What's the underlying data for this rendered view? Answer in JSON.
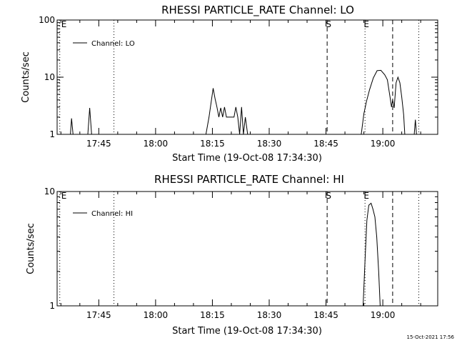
{
  "footer_timestamp": "15-Oct-2021 17:56",
  "chart_data": [
    {
      "type": "line",
      "title": "RHESSI PARTICLE_RATE Channel: LO",
      "xlabel": "Start Time (19-Oct-08 17:34:30)",
      "ylabel": "Counts/sec",
      "yscale": "log",
      "xlim_minutes": [
        -0.5,
        63.5
      ],
      "ylim": [
        1,
        100
      ],
      "x_ticks": [
        {
          "minutes": 10.5,
          "label": "17:45"
        },
        {
          "minutes": 25.5,
          "label": "18:00"
        },
        {
          "minutes": 40.5,
          "label": "18:15"
        },
        {
          "minutes": 55.5,
          "label": "18:30"
        },
        {
          "minutes": 70.5,
          "label": "18:45"
        },
        {
          "minutes": 85.5,
          "label": "19:00"
        }
      ],
      "y_ticks": [
        {
          "value": 1,
          "label": "1"
        },
        {
          "value": 10,
          "label": "10"
        },
        {
          "value": 100,
          "label": "100"
        }
      ],
      "legend": {
        "label": "Channel: LO",
        "position": "top-left"
      },
      "markers": [
        {
          "minutes": 0.2,
          "style": "dotted",
          "label": "E"
        },
        {
          "minutes": 14.5,
          "style": "dotted",
          "label": ""
        },
        {
          "minutes": 70.8,
          "style": "dashed",
          "label": "S"
        },
        {
          "minutes": 80.8,
          "style": "dotted",
          "label": "E"
        },
        {
          "minutes": 88.1,
          "style": "dashed",
          "label": ""
        },
        {
          "minutes": 95.0,
          "style": "dotted",
          "label": ""
        }
      ],
      "series": [
        {
          "segments": [
            [
              [
                3.0,
                1
              ],
              [
                3.3,
                1.9
              ],
              [
                3.7,
                1
              ]
            ],
            [
              [
                7.6,
                1
              ],
              [
                8.1,
                2.9
              ],
              [
                8.6,
                1
              ]
            ],
            [
              [
                38.8,
                1
              ],
              [
                39.6,
                2
              ],
              [
                40.2,
                3.8
              ],
              [
                40.7,
                6.4
              ],
              [
                41.2,
                4.2
              ],
              [
                41.7,
                3
              ],
              [
                42.2,
                2
              ],
              [
                42.7,
                2.9
              ],
              [
                43.2,
                2
              ],
              [
                43.7,
                3
              ],
              [
                44.2,
                2
              ],
              [
                45.2,
                2
              ],
              [
                46.2,
                2
              ],
              [
                46.7,
                3
              ],
              [
                47.2,
                2
              ],
              [
                47.7,
                1
              ],
              [
                48.2,
                3
              ],
              [
                48.7,
                1
              ],
              [
                49.2,
                2
              ],
              [
                49.8,
                1
              ]
            ],
            [
              [
                79.8,
                1
              ],
              [
                80.5,
                2.3
              ],
              [
                81.2,
                3.8
              ],
              [
                82,
                6
              ],
              [
                83,
                9.7
              ],
              [
                84,
                13
              ],
              [
                85,
                13.2
              ],
              [
                86,
                11
              ],
              [
                86.7,
                9
              ],
              [
                87.4,
                4.5
              ],
              [
                87.8,
                3
              ],
              [
                88.1,
                4
              ],
              [
                88.5,
                2.9
              ],
              [
                89,
                8
              ],
              [
                89.5,
                10
              ],
              [
                90,
                8
              ],
              [
                90.5,
                4.5
              ],
              [
                91,
                2.2
              ],
              [
                91.3,
                1
              ]
            ],
            [
              [
                93.8,
                1
              ],
              [
                94.1,
                1.8
              ],
              [
                94.4,
                1
              ]
            ]
          ]
        }
      ]
    },
    {
      "type": "line",
      "title": "RHESSI PARTICLE_RATE Channel: HI",
      "xlabel": "Start Time (19-Oct-08 17:34:30)",
      "ylabel": "Counts/sec",
      "yscale": "log",
      "xlim_minutes": [
        -0.5,
        63.5
      ],
      "ylim": [
        1,
        10
      ],
      "x_ticks": [
        {
          "minutes": 10.5,
          "label": "17:45"
        },
        {
          "minutes": 25.5,
          "label": "18:00"
        },
        {
          "minutes": 40.5,
          "label": "18:15"
        },
        {
          "minutes": 55.5,
          "label": "18:30"
        },
        {
          "minutes": 70.5,
          "label": "18:45"
        },
        {
          "minutes": 85.5,
          "label": "19:00"
        }
      ],
      "y_ticks": [
        {
          "value": 1,
          "label": "1"
        },
        {
          "value": 10,
          "label": "10"
        }
      ],
      "legend": {
        "label": "Channel: HI",
        "position": "top-left"
      },
      "markers": [
        {
          "minutes": 0.2,
          "style": "dotted",
          "label": "E"
        },
        {
          "minutes": 14.5,
          "style": "dotted",
          "label": ""
        },
        {
          "minutes": 70.8,
          "style": "dashed",
          "label": "S"
        },
        {
          "minutes": 80.8,
          "style": "dotted",
          "label": "E"
        },
        {
          "minutes": 88.1,
          "style": "dashed",
          "label": ""
        },
        {
          "minutes": 95.0,
          "style": "dotted",
          "label": ""
        }
      ],
      "series": [
        {
          "segments": [
            [
              [
                80.3,
                1
              ],
              [
                80.8,
                2.5
              ],
              [
                81.3,
                5.6
              ],
              [
                81.8,
                7.6
              ],
              [
                82.4,
                7.9
              ],
              [
                82.9,
                7
              ],
              [
                83.4,
                6
              ],
              [
                83.9,
                4
              ],
              [
                84.4,
                2
              ],
              [
                84.8,
                1
              ]
            ]
          ]
        }
      ]
    }
  ]
}
